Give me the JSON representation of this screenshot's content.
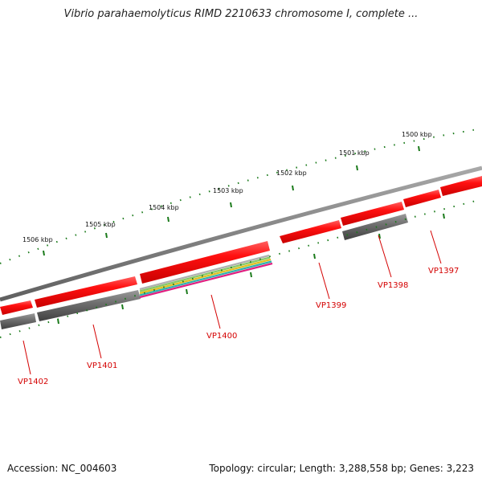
{
  "title": "Vibrio parahaemolyticus RIMD 2210633 chromosome I, complete ...",
  "footer": {
    "accession": "Accession: NC_004603",
    "summary": "Topology: circular; Length: 3,288,558 bp; Genes: 3,223"
  },
  "scale_labels": [
    "1500 kbp",
    "1501 kbp",
    "1502 kbp",
    "1503 kbp",
    "1504 kbp",
    "1505 kbp",
    "1506 kbp"
  ],
  "gene_labels": [
    "VP1397",
    "VP1398",
    "VP1399",
    "VP1400",
    "VP1401",
    "VP1402"
  ],
  "colors": {
    "gene": "#ee0000",
    "backbone": "#808080",
    "hit": "#606060",
    "tick": "#1a7a1a",
    "label": "#d40000"
  }
}
